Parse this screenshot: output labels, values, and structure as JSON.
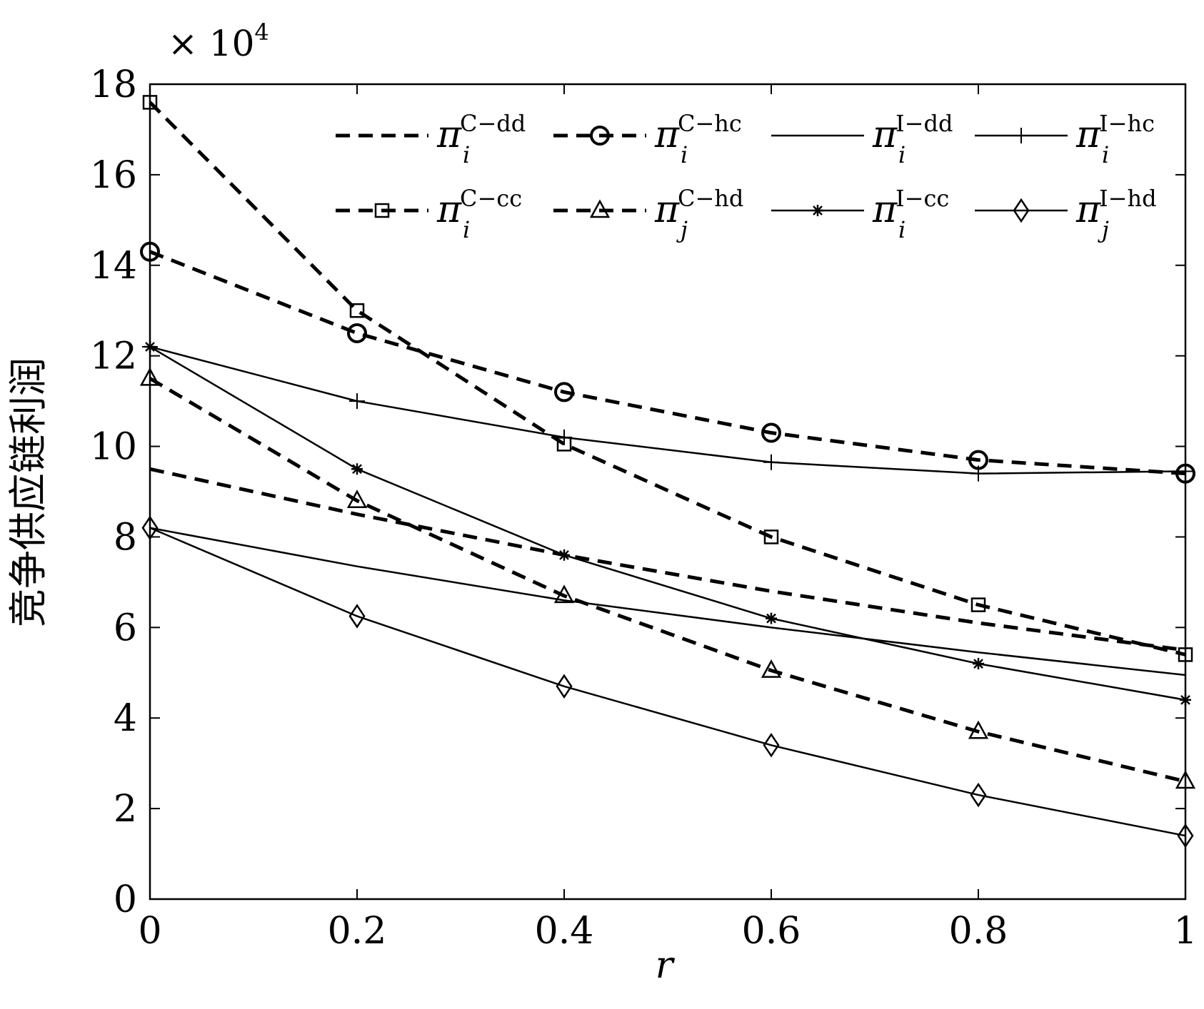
{
  "chart_data": {
    "type": "line",
    "xlabel": "r",
    "ylabel": "竞争供应链利润",
    "y_multiplier": "× 10",
    "y_multiplier_exp": "4",
    "xlim": [
      0,
      1
    ],
    "ylim": [
      0,
      18
    ],
    "x_ticks": [
      0,
      0.2,
      0.4,
      0.6,
      0.8,
      1
    ],
    "x_tick_labels": [
      "0",
      "0.2",
      "0.4",
      "0.6",
      "0.8",
      "1"
    ],
    "y_ticks": [
      0,
      2,
      4,
      6,
      8,
      10,
      12,
      14,
      16,
      18
    ],
    "y_tick_labels": [
      "0",
      "2",
      "4",
      "6",
      "8",
      "10",
      "12",
      "14",
      "16",
      "18"
    ],
    "grid": false,
    "legend_position": "top-right",
    "x": [
      0,
      0.2,
      0.4,
      0.6,
      0.8,
      1
    ],
    "series": [
      {
        "name": "π_i^{C−dd}",
        "base": "π",
        "sub": "i",
        "sup": "C−dd",
        "line": "dashed",
        "marker": "none",
        "values": [
          9.5,
          8.5,
          7.6,
          6.8,
          6.1,
          5.5
        ]
      },
      {
        "name": "π_i^{C−hc}",
        "base": "π",
        "sub": "i",
        "sup": "C−hc",
        "line": "dashed",
        "marker": "circle",
        "values": [
          14.3,
          12.5,
          11.2,
          10.3,
          9.7,
          9.4
        ]
      },
      {
        "name": "π_i^{I−dd}",
        "base": "π",
        "sub": "i",
        "sup": "I−dd",
        "line": "solid",
        "marker": "none",
        "values": [
          8.2,
          7.35,
          6.6,
          6.0,
          5.45,
          4.95
        ]
      },
      {
        "name": "π_i^{I−hc}",
        "base": "π",
        "sub": "i",
        "sup": "I−hc",
        "line": "solid",
        "marker": "plus",
        "values": [
          12.2,
          11.0,
          10.2,
          9.65,
          9.4,
          9.45
        ]
      },
      {
        "name": "π_i^{C−cc}",
        "base": "π",
        "sub": "i",
        "sup": "C−cc",
        "line": "dashed",
        "marker": "square",
        "values": [
          17.6,
          13.0,
          10.05,
          8.0,
          6.5,
          5.4
        ]
      },
      {
        "name": "π_j^{C−hd}",
        "base": "π",
        "sub": "j",
        "sup": "C−hd",
        "line": "dashed",
        "marker": "triangle",
        "values": [
          11.5,
          8.8,
          6.7,
          5.05,
          3.7,
          2.6
        ]
      },
      {
        "name": "π_i^{I−cc}",
        "base": "π",
        "sub": "i",
        "sup": "I−cc",
        "line": "solid",
        "marker": "asterisk",
        "values": [
          12.2,
          9.5,
          7.6,
          6.2,
          5.2,
          4.4
        ]
      },
      {
        "name": "π_j^{I−hd}",
        "base": "π",
        "sub": "j",
        "sup": "I−hd",
        "line": "solid",
        "marker": "diamond",
        "values": [
          8.2,
          6.25,
          4.7,
          3.4,
          2.3,
          1.4
        ]
      }
    ]
  }
}
